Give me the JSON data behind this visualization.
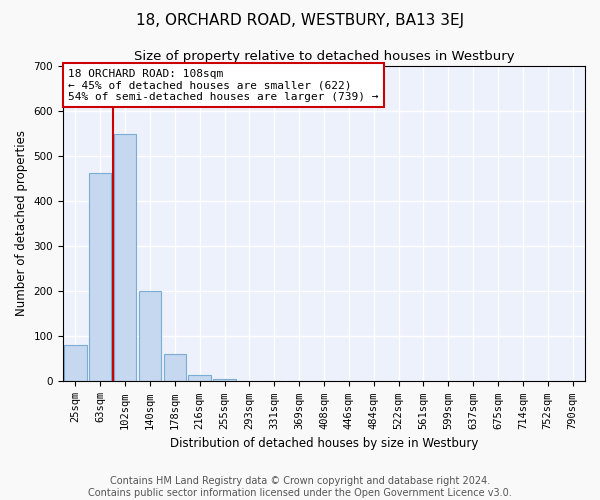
{
  "title": "18, ORCHARD ROAD, WESTBURY, BA13 3EJ",
  "subtitle": "Size of property relative to detached houses in Westbury",
  "xlabel": "Distribution of detached houses by size in Westbury",
  "ylabel": "Number of detached properties",
  "categories": [
    "25sqm",
    "63sqm",
    "102sqm",
    "140sqm",
    "178sqm",
    "216sqm",
    "255sqm",
    "293sqm",
    "331sqm",
    "369sqm",
    "408sqm",
    "446sqm",
    "484sqm",
    "522sqm",
    "561sqm",
    "599sqm",
    "637sqm",
    "675sqm",
    "714sqm",
    "752sqm",
    "790sqm"
  ],
  "values": [
    80,
    462,
    548,
    200,
    60,
    15,
    5,
    2,
    1,
    1,
    1,
    0,
    0,
    0,
    0,
    0,
    0,
    0,
    0,
    0,
    0
  ],
  "bar_color": "#c5d8ef",
  "bar_edge_color": "#7aadd4",
  "property_line_index": 2,
  "property_line_color": "#cc0000",
  "annotation_text": "18 ORCHARD ROAD: 108sqm\n← 45% of detached houses are smaller (622)\n54% of semi-detached houses are larger (739) →",
  "annotation_box_facecolor": "#ffffff",
  "annotation_box_edgecolor": "#cc0000",
  "ylim": [
    0,
    700
  ],
  "yticks": [
    0,
    100,
    200,
    300,
    400,
    500,
    600,
    700
  ],
  "footer_line1": "Contains HM Land Registry data © Crown copyright and database right 2024.",
  "footer_line2": "Contains public sector information licensed under the Open Government Licence v3.0.",
  "fig_bg_color": "#f9f9f9",
  "plot_bg_color": "#edf1fb",
  "grid_color": "#ffffff",
  "title_fontsize": 11,
  "subtitle_fontsize": 9.5,
  "axis_label_fontsize": 8.5,
  "tick_fontsize": 7.5,
  "annotation_fontsize": 8,
  "footer_fontsize": 7
}
